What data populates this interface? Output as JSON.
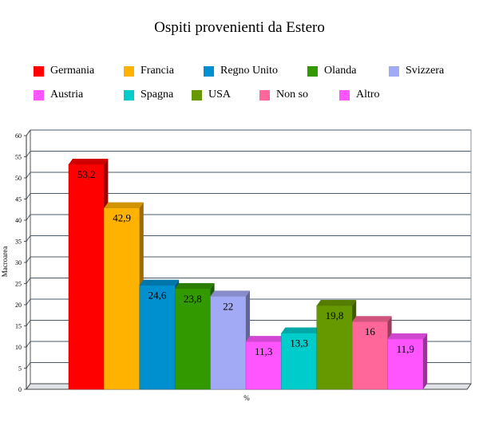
{
  "chart_data": {
    "type": "bar",
    "title": "Ospiti provenienti da Estero",
    "xlabel": "%",
    "ylabel": "Macroarea",
    "ylim": [
      0,
      60
    ],
    "yticks": [
      "0",
      "5",
      "10",
      "15",
      "20",
      "25",
      "30",
      "35",
      "40",
      "45",
      "50",
      "55",
      "60"
    ],
    "grid": true,
    "legend_position": "top",
    "series": [
      {
        "name": "Germania",
        "value": 53.2,
        "label": "53,2",
        "color": "#ff0000"
      },
      {
        "name": "Francia",
        "value": 42.9,
        "label": "42,9",
        "color": "#ffb300"
      },
      {
        "name": "Regno Unito",
        "value": 24.6,
        "label": "24,6",
        "color": "#0090d0"
      },
      {
        "name": "Olanda",
        "value": 23.8,
        "label": "23,8",
        "color": "#339900"
      },
      {
        "name": "Svizzera",
        "value": 22,
        "label": "22",
        "color": "#a3aaf5"
      },
      {
        "name": "Austria",
        "value": 11.3,
        "label": "11,3",
        "color": "#ff55ff"
      },
      {
        "name": "Spagna",
        "value": 13.3,
        "label": "13,3",
        "color": "#00cccc"
      },
      {
        "name": "USA",
        "value": 19.8,
        "label": "19,8",
        "color": "#669900"
      },
      {
        "name": "Non so",
        "value": 16,
        "label": "16",
        "color": "#ff6699"
      },
      {
        "name": "Altro",
        "value": 11.9,
        "label": "11,9",
        "color": "#ff55ff"
      }
    ]
  }
}
